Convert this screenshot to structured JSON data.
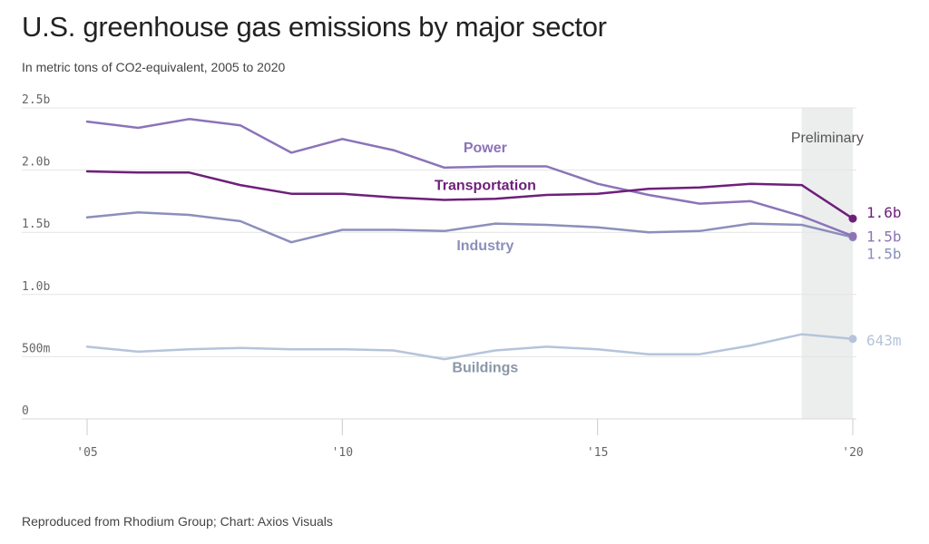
{
  "title": "U.S. greenhouse gas emissions by major sector",
  "subtitle": "In metric tons of CO2-equivalent, 2005 to 2020",
  "source": "Reproduced from Rhodium Group; Chart: Axios Visuals",
  "chart_data": {
    "type": "line",
    "title": "U.S. greenhouse gas emissions by major sector",
    "subtitle": "In metric tons of CO2-equivalent, 2005 to 2020",
    "x": [
      2005,
      2006,
      2007,
      2008,
      2009,
      2010,
      2011,
      2012,
      2013,
      2014,
      2015,
      2016,
      2017,
      2018,
      2019,
      2020
    ],
    "x_ticks": [
      2005,
      2010,
      2015,
      2020
    ],
    "x_tick_labels": [
      "'05",
      "'10",
      "'15",
      "'20"
    ],
    "xlim": [
      2005,
      2020
    ],
    "ylim": [
      0,
      2.5
    ],
    "y_ticks": [
      0,
      0.5,
      1.0,
      1.5,
      2.0,
      2.5
    ],
    "y_tick_labels": [
      "0",
      "500m",
      "1.0b",
      "1.5b",
      "2.0b",
      "2.5b"
    ],
    "grid": true,
    "shaded_region": {
      "x": [
        2019,
        2020
      ],
      "label": "Preliminary",
      "color": "#eceeee"
    },
    "series": [
      {
        "name": "Power",
        "color": "#8c73b8",
        "end_label": "1.5b",
        "values": [
          2.39,
          2.34,
          2.41,
          2.36,
          2.14,
          2.25,
          2.16,
          2.02,
          2.03,
          2.03,
          1.89,
          1.8,
          1.73,
          1.75,
          1.63,
          1.47
        ]
      },
      {
        "name": "Transportation",
        "color": "#6e1f7a",
        "end_label": "1.6b",
        "values": [
          1.99,
          1.98,
          1.98,
          1.88,
          1.81,
          1.81,
          1.78,
          1.76,
          1.77,
          1.8,
          1.81,
          1.85,
          1.86,
          1.89,
          1.88,
          1.61
        ]
      },
      {
        "name": "Industry",
        "color": "#8b8fbb",
        "end_label": "1.5b",
        "values": [
          1.62,
          1.66,
          1.64,
          1.59,
          1.42,
          1.52,
          1.52,
          1.51,
          1.57,
          1.56,
          1.54,
          1.5,
          1.51,
          1.57,
          1.56,
          1.46
        ]
      },
      {
        "name": "Buildings",
        "color": "#b5c4da",
        "end_label": "643m",
        "values": [
          0.58,
          0.54,
          0.56,
          0.57,
          0.56,
          0.56,
          0.55,
          0.48,
          0.55,
          0.58,
          0.56,
          0.52,
          0.52,
          0.59,
          0.68,
          0.643
        ]
      }
    ]
  }
}
